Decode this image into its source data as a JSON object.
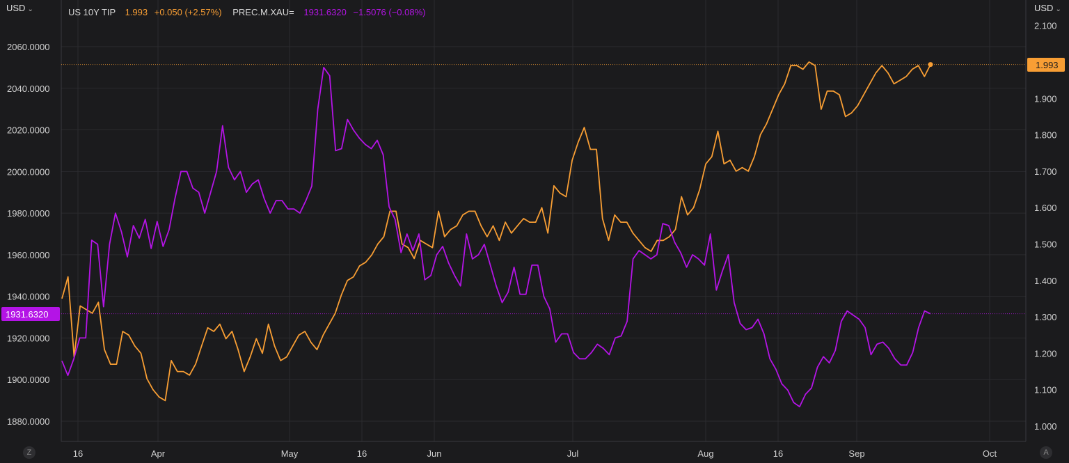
{
  "header": {
    "left_unit": "USD",
    "right_unit": "USD",
    "series1_name": "US 10Y TIP",
    "series1_last": "1.993",
    "series1_change": "+0.050 (+2.57%)",
    "series2_name": "PREC.M.XAU=",
    "series2_last": "1931.6320",
    "series2_change": "−1.5076 (−0.08%)"
  },
  "controls": {
    "zoom_button": "Z",
    "auto_button": "A"
  },
  "colors": {
    "tips": "#f89e34",
    "gold": "#b414e6",
    "background": "#1b1b1d",
    "grid": "#2c2c2f"
  },
  "price_labels": {
    "right": "1.993",
    "left": "1931.6320"
  },
  "chart_data": {
    "type": "line",
    "x_labels": [
      "16",
      "Apr",
      "May",
      "16",
      "Jun",
      "Jul",
      "Aug",
      "16",
      "Sep",
      "Oct"
    ],
    "y_left_ticks": [
      "1880.0000",
      "1900.0000",
      "1920.0000",
      "1940.0000",
      "1960.0000",
      "1980.0000",
      "2000.0000",
      "2020.0000",
      "2040.0000",
      "2060.0000"
    ],
    "y_right_ticks": [
      "1.000",
      "1.100",
      "1.200",
      "1.300",
      "1.400",
      "1.500",
      "1.600",
      "1.700",
      "1.800",
      "1.900",
      "2.100"
    ],
    "y_left_range": [
      1880,
      2060
    ],
    "y_right_range": [
      1.0,
      2.1
    ],
    "series": [
      {
        "name": "US 10Y TIP",
        "axis": "right",
        "values": [
          1.35,
          1.41,
          1.19,
          1.33,
          1.32,
          1.31,
          1.34,
          1.21,
          1.17,
          1.17,
          1.26,
          1.25,
          1.22,
          1.2,
          1.13,
          1.1,
          1.08,
          1.07,
          1.18,
          1.15,
          1.15,
          1.14,
          1.17,
          1.22,
          1.27,
          1.26,
          1.28,
          1.24,
          1.26,
          1.21,
          1.15,
          1.19,
          1.24,
          1.2,
          1.28,
          1.22,
          1.18,
          1.19,
          1.22,
          1.25,
          1.26,
          1.23,
          1.21,
          1.25,
          1.28,
          1.31,
          1.36,
          1.4,
          1.41,
          1.44,
          1.45,
          1.47,
          1.5,
          1.52,
          1.59,
          1.59,
          1.5,
          1.49,
          1.46,
          1.51,
          1.5,
          1.49,
          1.59,
          1.52,
          1.54,
          1.55,
          1.58,
          1.59,
          1.59,
          1.55,
          1.52,
          1.55,
          1.51,
          1.56,
          1.53,
          1.55,
          1.57,
          1.56,
          1.56,
          1.6,
          1.53,
          1.66,
          1.64,
          1.63,
          1.73,
          1.78,
          1.82,
          1.76,
          1.76,
          1.57,
          1.51,
          1.58,
          1.56,
          1.56,
          1.53,
          1.51,
          1.49,
          1.48,
          1.51,
          1.51,
          1.52,
          1.54,
          1.63,
          1.58,
          1.6,
          1.65,
          1.72,
          1.74,
          1.81,
          1.72,
          1.73,
          1.7,
          1.71,
          1.7,
          1.74,
          1.8,
          1.83,
          1.87,
          1.91,
          1.94,
          1.99,
          1.99,
          1.98,
          2.0,
          1.99,
          1.87,
          1.92,
          1.92,
          1.91,
          1.85,
          1.86,
          1.88,
          1.91,
          1.94,
          1.97,
          1.99,
          1.97,
          1.94,
          1.95,
          1.96,
          1.98,
          1.99,
          1.96,
          1.993
        ]
      },
      {
        "name": "PREC.M.XAU=",
        "axis": "left",
        "values": [
          1909,
          1902,
          1910,
          1920,
          1920,
          1967,
          1965,
          1935,
          1965,
          1980,
          1971,
          1959,
          1974,
          1968,
          1977,
          1963,
          1976,
          1964,
          1972,
          1987,
          2000,
          2000,
          1992,
          1990,
          1980,
          1990,
          2000,
          2022,
          2002,
          1996,
          2000,
          1990,
          1994,
          1996,
          1987,
          1980,
          1986,
          1986,
          1982,
          1982,
          1980,
          1986,
          1993,
          2030,
          2050,
          2046,
          2010,
          2011,
          2025,
          2020,
          2016,
          2013,
          2011,
          2015,
          2008,
          1983,
          1977,
          1961,
          1970,
          1962,
          1970,
          1948,
          1950,
          1960,
          1964,
          1956,
          1950,
          1945,
          1970,
          1958,
          1960,
          1965,
          1955,
          1945,
          1937,
          1942,
          1954,
          1941,
          1941,
          1955,
          1955,
          1940,
          1934,
          1918,
          1922,
          1922,
          1913,
          1910,
          1910,
          1913,
          1917,
          1915,
          1912,
          1920,
          1921,
          1928,
          1958,
          1962,
          1960,
          1958,
          1960,
          1975,
          1974,
          1966,
          1961,
          1954,
          1960,
          1958,
          1955,
          1970,
          1943,
          1952,
          1960,
          1937,
          1927,
          1924,
          1925,
          1929,
          1922,
          1910,
          1905,
          1898,
          1895,
          1889,
          1887,
          1893,
          1896,
          1906,
          1911,
          1908,
          1914,
          1928,
          1933,
          1931,
          1929,
          1925,
          1912,
          1917,
          1918,
          1915,
          1910,
          1907,
          1907,
          1913,
          1925,
          1933,
          1931.632
        ]
      }
    ]
  }
}
